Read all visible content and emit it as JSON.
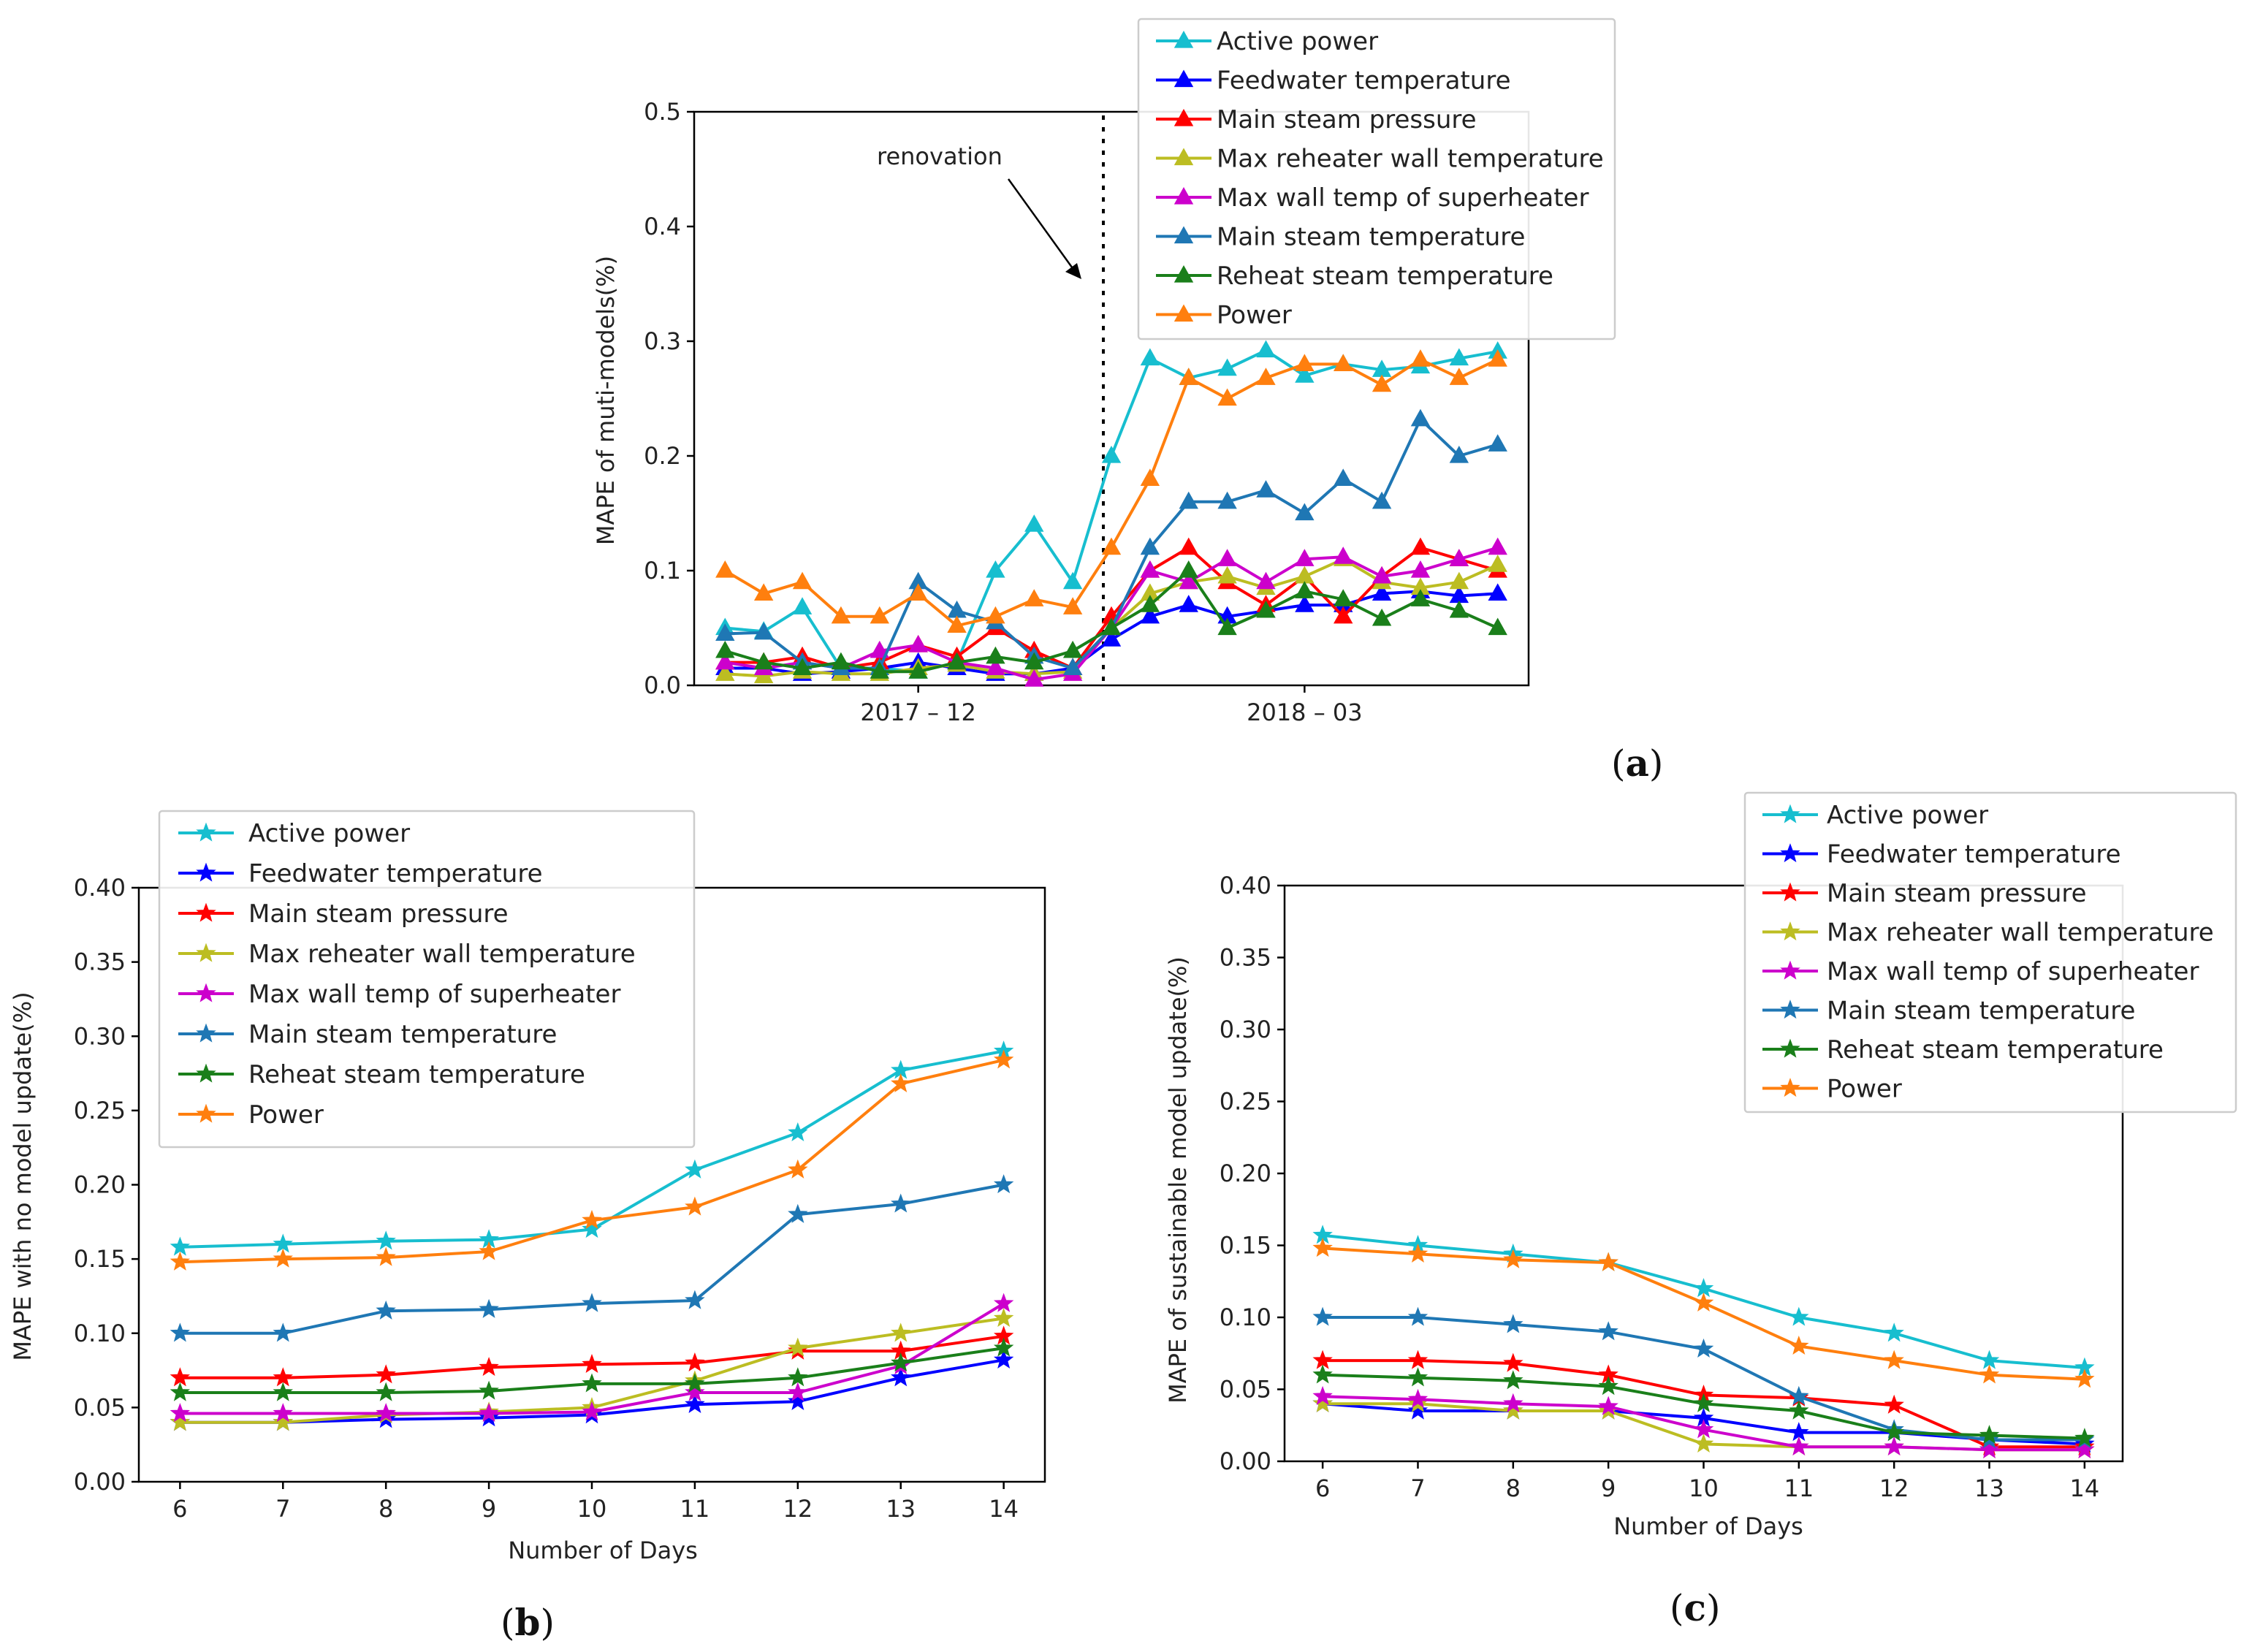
{
  "colors": {
    "Active power": "#17becf",
    "Feedwater temperature": "#0000ff",
    "Main steam pressure": "#ff0000",
    "Max reheater wall temperature": "#bcbd22",
    "Max wall temp of superheater": "#cc00cc",
    "Main steam temperature": "#1f77b4",
    "Reheat steam temperature": "#1a7f1a",
    "Power": "#ff7f0e"
  },
  "chart_data": [
    {
      "id": "a",
      "panel_label": "a",
      "type": "line",
      "marker": "triangle",
      "ylabel": "MAPE of muti-models(%)",
      "xlabel": "",
      "ylim": [
        0,
        0.5
      ],
      "yticks": [
        "0.0",
        "0.1",
        "0.2",
        "0.3",
        "0.4",
        "0.5"
      ],
      "xticks": [
        {
          "x": 5,
          "label": "2017 – 12"
        },
        {
          "x": 15,
          "label": "2018 – 03"
        }
      ],
      "xlim": [
        -0.8,
        20.8
      ],
      "x": [
        0,
        1,
        2,
        3,
        4,
        5,
        6,
        7,
        8,
        9,
        10,
        11,
        12,
        13,
        14,
        15,
        16,
        17,
        18,
        19,
        20
      ],
      "annotation": {
        "text": "renovation",
        "x": 10.0
      },
      "series": [
        {
          "name": "Active power",
          "values": [
            0.05,
            0.047,
            0.068,
            0.015,
            0.015,
            0.012,
            0.02,
            0.1,
            0.14,
            0.09,
            0.2,
            0.285,
            0.268,
            0.276,
            0.292,
            0.27,
            0.28,
            0.275,
            0.278,
            0.285,
            0.291
          ]
        },
        {
          "name": "Feedwater temperature",
          "values": [
            0.015,
            0.015,
            0.01,
            0.012,
            0.015,
            0.02,
            0.015,
            0.01,
            0.01,
            0.015,
            0.04,
            0.06,
            0.07,
            0.06,
            0.065,
            0.07,
            0.07,
            0.08,
            0.082,
            0.078,
            0.08
          ]
        },
        {
          "name": "Main steam pressure",
          "values": [
            0.02,
            0.02,
            0.025,
            0.015,
            0.02,
            0.035,
            0.025,
            0.05,
            0.03,
            0.015,
            0.06,
            0.1,
            0.12,
            0.09,
            0.07,
            0.095,
            0.06,
            0.095,
            0.12,
            0.11,
            0.1
          ]
        },
        {
          "name": "Max reheater wall temperature",
          "values": [
            0.01,
            0.008,
            0.012,
            0.01,
            0.01,
            0.015,
            0.018,
            0.012,
            0.01,
            0.012,
            0.05,
            0.08,
            0.09,
            0.095,
            0.085,
            0.095,
            0.11,
            0.09,
            0.085,
            0.09,
            0.105
          ]
        },
        {
          "name": "Max wall temp of superheater",
          "values": [
            0.02,
            0.015,
            0.02,
            0.015,
            0.03,
            0.035,
            0.02,
            0.015,
            0.005,
            0.01,
            0.05,
            0.1,
            0.09,
            0.11,
            0.09,
            0.11,
            0.112,
            0.095,
            0.1,
            0.11,
            0.12
          ]
        },
        {
          "name": "Main steam temperature",
          "values": [
            0.045,
            0.046,
            0.02,
            0.015,
            0.015,
            0.09,
            0.065,
            0.055,
            0.025,
            0.015,
            0.05,
            0.12,
            0.16,
            0.16,
            0.17,
            0.15,
            0.18,
            0.16,
            0.232,
            0.2,
            0.21
          ]
        },
        {
          "name": "Reheat steam temperature",
          "values": [
            0.03,
            0.02,
            0.015,
            0.02,
            0.012,
            0.012,
            0.02,
            0.025,
            0.02,
            0.03,
            0.05,
            0.07,
            0.1,
            0.05,
            0.065,
            0.082,
            0.075,
            0.058,
            0.075,
            0.065,
            0.05
          ]
        },
        {
          "name": "Power",
          "values": [
            0.1,
            0.08,
            0.09,
            0.06,
            0.06,
            0.08,
            0.052,
            0.06,
            0.075,
            0.068,
            0.12,
            0.18,
            0.268,
            0.25,
            0.268,
            0.28,
            0.28,
            0.262,
            0.284,
            0.268,
            0.284
          ]
        }
      ]
    },
    {
      "id": "b",
      "panel_label": "b",
      "type": "line",
      "marker": "star",
      "ylabel": "MAPE with no model update(%)",
      "xlabel": "Number of Days",
      "ylim": [
        0,
        0.4
      ],
      "yticks": [
        "0.00",
        "0.05",
        "0.10",
        "0.15",
        "0.20",
        "0.25",
        "0.30",
        "0.35",
        "0.40"
      ],
      "xticks": [
        {
          "x": 6,
          "label": "6"
        },
        {
          "x": 7,
          "label": "7"
        },
        {
          "x": 8,
          "label": "8"
        },
        {
          "x": 9,
          "label": "9"
        },
        {
          "x": 10,
          "label": "10"
        },
        {
          "x": 11,
          "label": "11"
        },
        {
          "x": 12,
          "label": "12"
        },
        {
          "x": 13,
          "label": "13"
        },
        {
          "x": 14,
          "label": "14"
        }
      ],
      "xlim": [
        5.6,
        14.4
      ],
      "x": [
        6,
        7,
        8,
        9,
        10,
        11,
        12,
        13,
        14
      ],
      "series": [
        {
          "name": "Active power",
          "values": [
            0.158,
            0.16,
            0.162,
            0.163,
            0.17,
            0.21,
            0.235,
            0.277,
            0.29
          ]
        },
        {
          "name": "Feedwater temperature",
          "values": [
            0.04,
            0.04,
            0.042,
            0.043,
            0.045,
            0.052,
            0.054,
            0.07,
            0.082
          ]
        },
        {
          "name": "Main steam pressure",
          "values": [
            0.07,
            0.07,
            0.072,
            0.077,
            0.079,
            0.08,
            0.088,
            0.088,
            0.098
          ]
        },
        {
          "name": "Max reheater wall temperature",
          "values": [
            0.04,
            0.04,
            0.045,
            0.047,
            0.05,
            0.068,
            0.09,
            0.1,
            0.11
          ]
        },
        {
          "name": "Max wall temp of superheater",
          "values": [
            0.046,
            0.046,
            0.046,
            0.046,
            0.047,
            0.06,
            0.06,
            0.078,
            0.12
          ]
        },
        {
          "name": "Main steam temperature",
          "values": [
            0.1,
            0.1,
            0.115,
            0.116,
            0.12,
            0.122,
            0.18,
            0.187,
            0.2
          ]
        },
        {
          "name": "Reheat steam temperature",
          "values": [
            0.06,
            0.06,
            0.06,
            0.061,
            0.066,
            0.066,
            0.07,
            0.08,
            0.09
          ]
        },
        {
          "name": "Power",
          "values": [
            0.148,
            0.15,
            0.151,
            0.155,
            0.176,
            0.185,
            0.21,
            0.268,
            0.284
          ]
        }
      ]
    },
    {
      "id": "c",
      "panel_label": "c",
      "type": "line",
      "marker": "star",
      "ylabel": "MAPE of  sustainable model update(%)",
      "xlabel": "Number of Days",
      "ylim": [
        0,
        0.4
      ],
      "yticks": [
        "0.00",
        "0.05",
        "0.10",
        "0.15",
        "0.20",
        "0.25",
        "0.30",
        "0.35",
        "0.40"
      ],
      "xticks": [
        {
          "x": 6,
          "label": "6"
        },
        {
          "x": 7,
          "label": "7"
        },
        {
          "x": 8,
          "label": "8"
        },
        {
          "x": 9,
          "label": "9"
        },
        {
          "x": 10,
          "label": "10"
        },
        {
          "x": 11,
          "label": "11"
        },
        {
          "x": 12,
          "label": "12"
        },
        {
          "x": 13,
          "label": "13"
        },
        {
          "x": 14,
          "label": "14"
        }
      ],
      "xlim": [
        5.6,
        14.4
      ],
      "x": [
        6,
        7,
        8,
        9,
        10,
        11,
        12,
        13,
        14
      ],
      "series": [
        {
          "name": "Active power",
          "values": [
            0.157,
            0.15,
            0.144,
            0.138,
            0.12,
            0.1,
            0.089,
            0.07,
            0.065
          ]
        },
        {
          "name": "Feedwater temperature",
          "values": [
            0.04,
            0.035,
            0.035,
            0.035,
            0.03,
            0.02,
            0.02,
            0.015,
            0.012
          ]
        },
        {
          "name": "Main steam pressure",
          "values": [
            0.07,
            0.07,
            0.068,
            0.06,
            0.046,
            0.044,
            0.039,
            0.01,
            0.01
          ]
        },
        {
          "name": "Max reheater wall temperature",
          "values": [
            0.04,
            0.04,
            0.035,
            0.035,
            0.012,
            0.01,
            0.01,
            0.008,
            0.008
          ]
        },
        {
          "name": "Max wall temp of superheater",
          "values": [
            0.045,
            0.043,
            0.04,
            0.038,
            0.022,
            0.01,
            0.01,
            0.008,
            0.008
          ]
        },
        {
          "name": "Main steam temperature",
          "values": [
            0.1,
            0.1,
            0.095,
            0.09,
            0.078,
            0.045,
            0.022,
            0.015,
            0.015
          ]
        },
        {
          "name": "Reheat steam temperature",
          "values": [
            0.06,
            0.058,
            0.056,
            0.052,
            0.04,
            0.035,
            0.02,
            0.018,
            0.016
          ]
        },
        {
          "name": "Power",
          "values": [
            0.148,
            0.144,
            0.14,
            0.138,
            0.11,
            0.08,
            0.07,
            0.06,
            0.057
          ]
        }
      ]
    }
  ]
}
